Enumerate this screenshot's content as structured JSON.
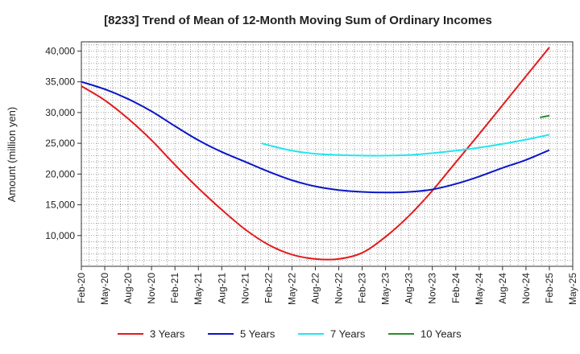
{
  "chart_data": {
    "type": "line",
    "title": "[8233]  Trend of Mean of 12-Month Moving Sum of Ordinary Incomes",
    "xlabel": "",
    "ylabel": "Amount (million yen)",
    "ylim": [
      5000,
      41500
    ],
    "yticks": [
      10000,
      15000,
      20000,
      25000,
      30000,
      35000,
      40000
    ],
    "ytick_labels": [
      "10,000",
      "15,000",
      "20,000",
      "25,000",
      "30,000",
      "35,000",
      "40,000"
    ],
    "categories": [
      "Feb-20",
      "May-20",
      "Aug-20",
      "Nov-20",
      "Feb-21",
      "May-21",
      "Aug-21",
      "Nov-21",
      "Feb-22",
      "May-22",
      "Aug-22",
      "Nov-22",
      "Feb-23",
      "May-23",
      "Aug-23",
      "Nov-23",
      "Feb-24",
      "May-24",
      "Aug-24",
      "Nov-24",
      "Feb-25",
      "May-25"
    ],
    "grid": true,
    "legend_position": "bottom",
    "series": [
      {
        "name": "3 Years",
        "color": "#e31a1c",
        "x": [
          0,
          1,
          2,
          3,
          4,
          5,
          6,
          7,
          8,
          9,
          10,
          11,
          12,
          13,
          14,
          15,
          16,
          17,
          18,
          19,
          20
        ],
        "values": [
          34300,
          32000,
          29000,
          25500,
          21500,
          17700,
          14200,
          11000,
          8500,
          6900,
          6200,
          6200,
          7200,
          9800,
          13200,
          17300,
          21900,
          26500,
          31200,
          35900,
          40600
        ]
      },
      {
        "name": "5 Years",
        "color": "#0a16c8",
        "x": [
          0,
          1,
          2,
          3,
          4,
          5,
          6,
          7,
          8,
          9,
          10,
          11,
          12,
          13,
          14,
          15,
          16,
          17,
          18,
          19,
          20
        ],
        "values": [
          35000,
          33800,
          32200,
          30200,
          27800,
          25500,
          23600,
          22000,
          20400,
          19000,
          18000,
          17400,
          17100,
          17000,
          17100,
          17500,
          18400,
          19600,
          21000,
          22300,
          23900
        ]
      },
      {
        "name": "7 Years",
        "color": "#22e5f0",
        "x": [
          7.7,
          8,
          9,
          10,
          11,
          12,
          13,
          14,
          15,
          16,
          17,
          18,
          19,
          20
        ],
        "values": [
          25000,
          24700,
          23800,
          23300,
          23100,
          23000,
          23000,
          23100,
          23400,
          23800,
          24300,
          24900,
          25600,
          26400
        ]
      },
      {
        "name": "10 Years",
        "color": "#2e8b2e",
        "x": [
          19.6,
          20
        ],
        "values": [
          29200,
          29500
        ]
      }
    ]
  }
}
